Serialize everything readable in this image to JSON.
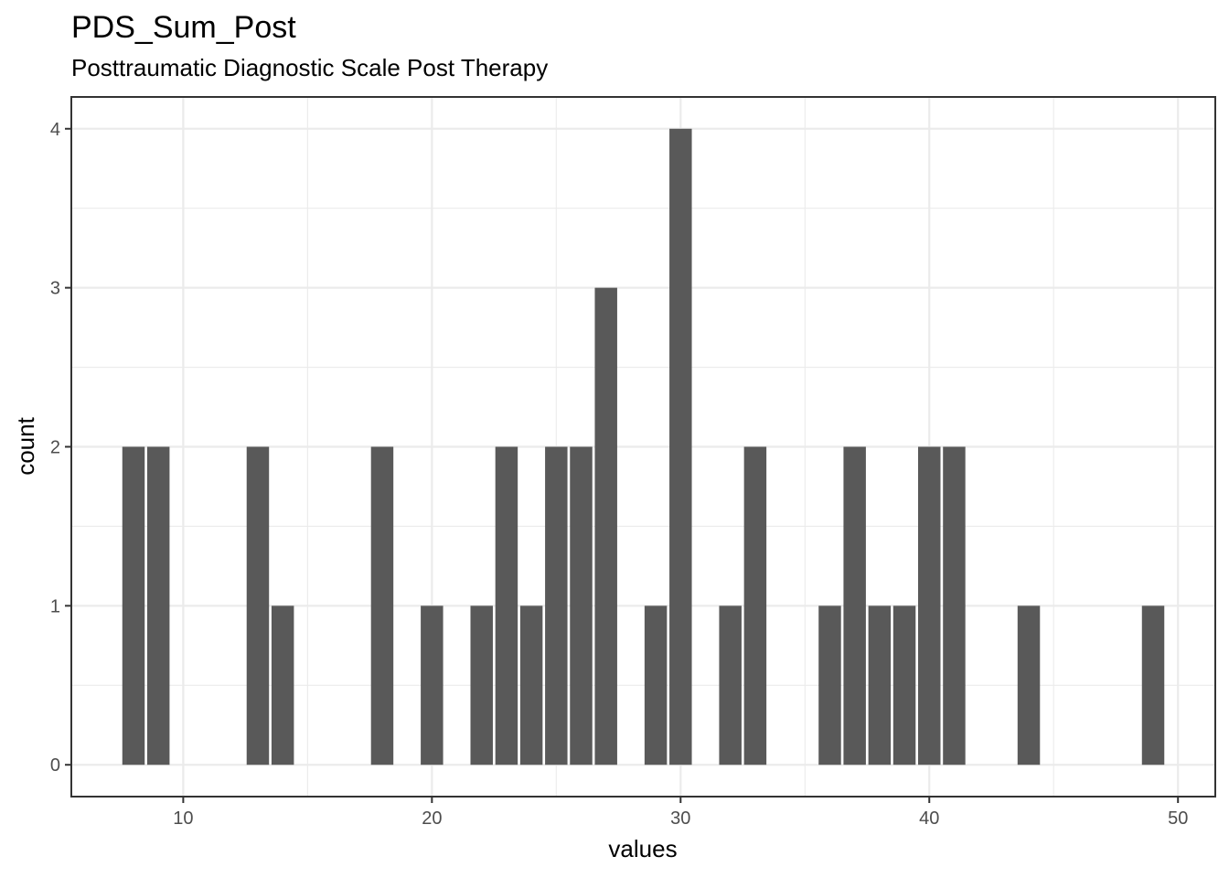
{
  "chart_data": {
    "type": "bar",
    "title": "PDS_Sum_Post",
    "subtitle": "Posttraumatic Diagnostic Scale Post Therapy",
    "xlabel": "values",
    "ylabel": "count",
    "xlim": [
      5.5,
      51.5
    ],
    "ylim": [
      -0.2,
      4.2
    ],
    "xticks": [
      10,
      20,
      30,
      40,
      50
    ],
    "yticks": [
      0,
      1,
      2,
      3,
      4
    ],
    "grid": true,
    "bar_width": 0.9,
    "bar_color": "#595959",
    "x": [
      8,
      9,
      13,
      14,
      18,
      20,
      22,
      23,
      24,
      25,
      26,
      27,
      29,
      30,
      32,
      33,
      36,
      37,
      38,
      39,
      40,
      41,
      44,
      49
    ],
    "values": [
      2,
      2,
      2,
      1,
      2,
      1,
      1,
      2,
      1,
      2,
      2,
      3,
      1,
      4,
      1,
      2,
      1,
      2,
      1,
      1,
      2,
      2,
      1,
      1
    ]
  }
}
